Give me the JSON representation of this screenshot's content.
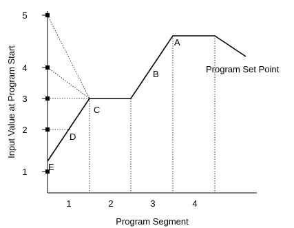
{
  "diagram": {
    "y_axis_label": "Input Value at Program Start",
    "x_axis_label": "Program Segment",
    "y_ticks": [
      "5",
      "4",
      "3",
      "2",
      "1"
    ],
    "segments": [
      "1",
      "2",
      "3",
      "4"
    ],
    "point_labels": {
      "a": "A",
      "b": "B",
      "c": "C",
      "d": "D",
      "e": "E"
    },
    "set_point_label": "Program Set Point",
    "colors": {
      "line": "#000000",
      "guide": "#000000",
      "background": "#ffffff"
    }
  }
}
